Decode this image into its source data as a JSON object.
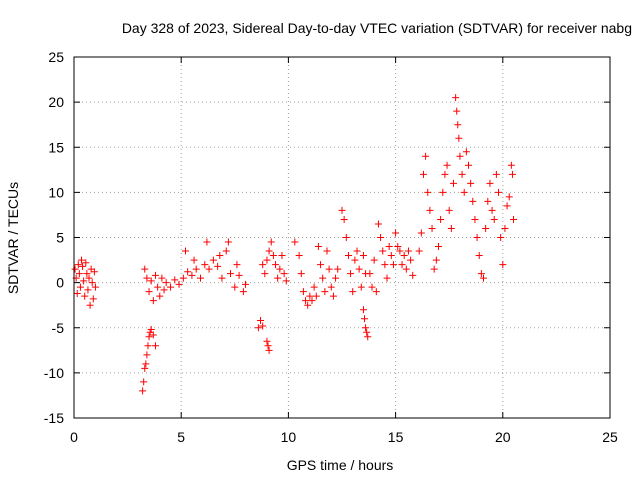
{
  "chart_data": {
    "type": "scatter",
    "title": "Day 328 of 2023, Sidereal Day-to-day VTEC variation (SDTVAR) for receiver nabg",
    "xlabel": "GPS time / hours",
    "ylabel": "SDTVAR / TECUs",
    "xlim": [
      0,
      25
    ],
    "ylim": [
      -15,
      25
    ],
    "xticks": [
      0,
      5,
      10,
      15,
      20,
      25
    ],
    "yticks": [
      -15,
      -10,
      -5,
      0,
      5,
      10,
      15,
      20,
      25
    ],
    "grid": true,
    "marker": "+",
    "color": "#ff0000",
    "series": [
      {
        "name": "SDTVAR",
        "points": [
          [
            0.05,
            1.5
          ],
          [
            0.1,
            0.5
          ],
          [
            0.15,
            -1.2
          ],
          [
            0.2,
            2.0
          ],
          [
            0.25,
            1.0
          ],
          [
            0.3,
            -0.5
          ],
          [
            0.35,
            2.5
          ],
          [
            0.4,
            1.8
          ],
          [
            0.45,
            0.2
          ],
          [
            0.5,
            -1.5
          ],
          [
            0.55,
            2.2
          ],
          [
            0.6,
            1.0
          ],
          [
            0.65,
            -0.8
          ],
          [
            0.7,
            0.5
          ],
          [
            0.75,
            -2.5
          ],
          [
            0.8,
            1.5
          ],
          [
            0.85,
            0.0
          ],
          [
            0.9,
            -1.8
          ],
          [
            0.95,
            1.2
          ],
          [
            1.0,
            -0.5
          ],
          [
            3.2,
            -12.0
          ],
          [
            3.25,
            -11.0
          ],
          [
            3.3,
            -9.5
          ],
          [
            3.35,
            -9.0
          ],
          [
            3.4,
            -8.0
          ],
          [
            3.45,
            -7.0
          ],
          [
            3.5,
            -6.0
          ],
          [
            3.55,
            -5.5
          ],
          [
            3.6,
            -5.2
          ],
          [
            3.7,
            -5.8
          ],
          [
            3.8,
            -7.0
          ],
          [
            3.3,
            1.5
          ],
          [
            3.4,
            0.5
          ],
          [
            3.5,
            -1.0
          ],
          [
            3.6,
            0.2
          ],
          [
            3.7,
            -2.0
          ],
          [
            3.8,
            0.8
          ],
          [
            3.9,
            -0.5
          ],
          [
            4.0,
            -1.5
          ],
          [
            4.1,
            0.5
          ],
          [
            4.2,
            -0.8
          ],
          [
            4.3,
            0.0
          ],
          [
            4.5,
            -0.5
          ],
          [
            4.7,
            0.3
          ],
          [
            4.9,
            -0.2
          ],
          [
            5.1,
            0.5
          ],
          [
            5.3,
            1.2
          ],
          [
            5.5,
            0.8
          ],
          [
            5.7,
            1.5
          ],
          [
            5.9,
            0.5
          ],
          [
            6.1,
            2.0
          ],
          [
            6.3,
            1.5
          ],
          [
            6.5,
            2.5
          ],
          [
            6.7,
            1.8
          ],
          [
            6.9,
            0.5
          ],
          [
            7.1,
            3.5
          ],
          [
            7.3,
            1.0
          ],
          [
            7.5,
            -0.5
          ],
          [
            7.7,
            0.8
          ],
          [
            7.9,
            -1.0
          ],
          [
            8.0,
            -0.2
          ],
          [
            5.2,
            3.5
          ],
          [
            5.6,
            2.5
          ],
          [
            6.2,
            4.5
          ],
          [
            6.8,
            3.0
          ],
          [
            7.2,
            4.5
          ],
          [
            7.6,
            2.0
          ],
          [
            8.6,
            -5.0
          ],
          [
            8.7,
            -4.2
          ],
          [
            8.8,
            -4.8
          ],
          [
            9.0,
            -6.5
          ],
          [
            9.1,
            -7.5
          ],
          [
            9.05,
            -7.0
          ],
          [
            8.8,
            2.0
          ],
          [
            8.9,
            1.0
          ],
          [
            9.0,
            2.5
          ],
          [
            9.1,
            3.5
          ],
          [
            9.2,
            4.5
          ],
          [
            9.3,
            3.0
          ],
          [
            9.4,
            2.0
          ],
          [
            9.5,
            0.5
          ],
          [
            9.6,
            1.5
          ],
          [
            9.7,
            3.0
          ],
          [
            9.8,
            1.0
          ],
          [
            9.9,
            0.2
          ],
          [
            10.3,
            4.5
          ],
          [
            10.5,
            3.0
          ],
          [
            10.6,
            1.0
          ],
          [
            10.7,
            -1.0
          ],
          [
            10.8,
            -2.0
          ],
          [
            10.9,
            -2.5
          ],
          [
            11.0,
            -1.5
          ],
          [
            11.1,
            -2.0
          ],
          [
            11.2,
            -0.5
          ],
          [
            11.3,
            -1.5
          ],
          [
            11.4,
            4.0
          ],
          [
            11.5,
            2.0
          ],
          [
            11.6,
            0.5
          ],
          [
            11.7,
            -1.0
          ],
          [
            11.8,
            3.5
          ],
          [
            11.9,
            1.5
          ],
          [
            12.0,
            -0.5
          ],
          [
            12.1,
            -1.5
          ],
          [
            12.2,
            0.5
          ],
          [
            12.3,
            1.5
          ],
          [
            12.5,
            8.0
          ],
          [
            12.6,
            7.0
          ],
          [
            12.7,
            5.0
          ],
          [
            12.8,
            3.0
          ],
          [
            12.9,
            1.0
          ],
          [
            13.0,
            -1.0
          ],
          [
            13.1,
            2.5
          ],
          [
            13.2,
            3.5
          ],
          [
            13.3,
            1.5
          ],
          [
            13.4,
            -0.5
          ],
          [
            13.5,
            3.0
          ],
          [
            13.6,
            1.0
          ],
          [
            13.5,
            -3.0
          ],
          [
            13.55,
            -4.0
          ],
          [
            13.6,
            -5.0
          ],
          [
            13.65,
            -5.5
          ],
          [
            13.7,
            -6.0
          ],
          [
            13.8,
            1.0
          ],
          [
            13.9,
            -0.5
          ],
          [
            14.0,
            2.5
          ],
          [
            14.1,
            -1.0
          ],
          [
            14.2,
            6.5
          ],
          [
            14.3,
            5.0
          ],
          [
            14.4,
            3.5
          ],
          [
            14.5,
            2.0
          ],
          [
            14.6,
            0.5
          ],
          [
            14.7,
            4.0
          ],
          [
            14.8,
            3.0
          ],
          [
            14.9,
            2.0
          ],
          [
            15.0,
            5.5
          ],
          [
            15.1,
            4.0
          ],
          [
            15.2,
            3.5
          ],
          [
            15.3,
            2.0
          ],
          [
            15.4,
            3.0
          ],
          [
            15.5,
            1.5
          ],
          [
            15.6,
            3.5
          ],
          [
            15.7,
            2.5
          ],
          [
            15.8,
            0.8
          ],
          [
            16.1,
            3.5
          ],
          [
            16.2,
            5.5
          ],
          [
            16.3,
            12.0
          ],
          [
            16.4,
            14.0
          ],
          [
            16.5,
            10.0
          ],
          [
            16.6,
            8.0
          ],
          [
            16.7,
            6.0
          ],
          [
            16.8,
            1.5
          ],
          [
            16.9,
            2.5
          ],
          [
            17.0,
            4.0
          ],
          [
            17.1,
            7.0
          ],
          [
            17.2,
            10.0
          ],
          [
            17.3,
            12.0
          ],
          [
            17.4,
            13.0
          ],
          [
            17.5,
            8.0
          ],
          [
            17.6,
            6.0
          ],
          [
            17.7,
            11.0
          ],
          [
            17.8,
            20.5
          ],
          [
            17.85,
            19.0
          ],
          [
            17.9,
            17.5
          ],
          [
            17.95,
            16.0
          ],
          [
            18.0,
            14.0
          ],
          [
            18.1,
            12.0
          ],
          [
            18.2,
            10.0
          ],
          [
            18.3,
            14.5
          ],
          [
            18.4,
            13.0
          ],
          [
            18.5,
            11.0
          ],
          [
            18.6,
            9.0
          ],
          [
            18.7,
            7.0
          ],
          [
            18.8,
            5.0
          ],
          [
            18.9,
            3.0
          ],
          [
            19.0,
            1.0
          ],
          [
            19.1,
            0.5
          ],
          [
            19.2,
            6.0
          ],
          [
            19.3,
            9.0
          ],
          [
            19.4,
            11.0
          ],
          [
            19.5,
            8.0
          ],
          [
            19.6,
            7.0
          ],
          [
            19.7,
            12.0
          ],
          [
            19.8,
            10.0
          ],
          [
            19.9,
            5.0
          ],
          [
            20.0,
            2.0
          ],
          [
            20.1,
            6.0
          ],
          [
            20.2,
            8.5
          ],
          [
            20.3,
            9.5
          ],
          [
            20.4,
            13.0
          ],
          [
            20.45,
            12.0
          ],
          [
            20.5,
            7.0
          ]
        ]
      }
    ]
  }
}
